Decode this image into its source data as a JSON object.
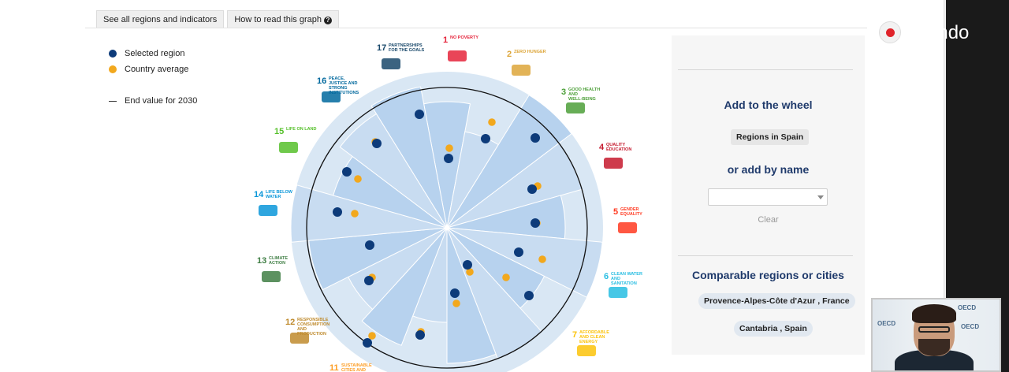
{
  "tabs": [
    {
      "label": "See all regions and indicators"
    },
    {
      "label": "How to read this graph",
      "icon": "question-circle-icon"
    }
  ],
  "legend": {
    "selected_label": "Selected region",
    "average_label": "Country average",
    "end_label": "End value for 2030",
    "colors": {
      "selected": "#0d3b7a",
      "average": "#f2a81d"
    }
  },
  "sdgs": [
    {
      "num": "1",
      "title": "NO POVERTY",
      "color": "#e5243b"
    },
    {
      "num": "2",
      "title": "ZERO HUNGER",
      "color": "#dda63a"
    },
    {
      "num": "3",
      "title": "GOOD HEALTH AND WELL-BEING",
      "color": "#4c9f38"
    },
    {
      "num": "4",
      "title": "QUALITY EDUCATION",
      "color": "#c5192d"
    },
    {
      "num": "5",
      "title": "GENDER EQUALITY",
      "color": "#ff3a21"
    },
    {
      "num": "6",
      "title": "CLEAN WATER AND SANITATION",
      "color": "#26bde2"
    },
    {
      "num": "7",
      "title": "AFFORDABLE AND CLEAN ENERGY",
      "color": "#fcc30b"
    },
    {
      "num": "11",
      "title": "SUSTAINABLE CITIES AND COMMUNITIES",
      "color": "#fd9d24"
    },
    {
      "num": "12",
      "title": "RESPONSIBLE CONSUMPTION AND PRODUCTION",
      "color": "#bf8b2e"
    },
    {
      "num": "13",
      "title": "CLIMATE ACTION",
      "color": "#3f7e44"
    },
    {
      "num": "14",
      "title": "LIFE BELOW WATER",
      "color": "#0a97d9"
    },
    {
      "num": "15",
      "title": "LIFE ON LAND",
      "color": "#56c02b"
    },
    {
      "num": "16",
      "title": "PEACE, JUSTICE AND STRONG INSTITUTIONS",
      "color": "#00689d"
    },
    {
      "num": "17",
      "title": "PARTNERSHIPS FOR THE GOALS",
      "color": "#19486a"
    }
  ],
  "panel": {
    "add_title": "Add to the wheel",
    "regions_button": "Regions in Spain",
    "add_by_name": "or add by name",
    "select_value": "",
    "clear_label": "Clear",
    "comparable_title": "Comparable regions or cities",
    "comparables": [
      "Provence-Alpes-Côte d'Azur , France",
      "Cantabria , Spain"
    ]
  },
  "recording": {
    "label": "ando"
  },
  "video": {
    "logo_text": "OECD"
  }
}
